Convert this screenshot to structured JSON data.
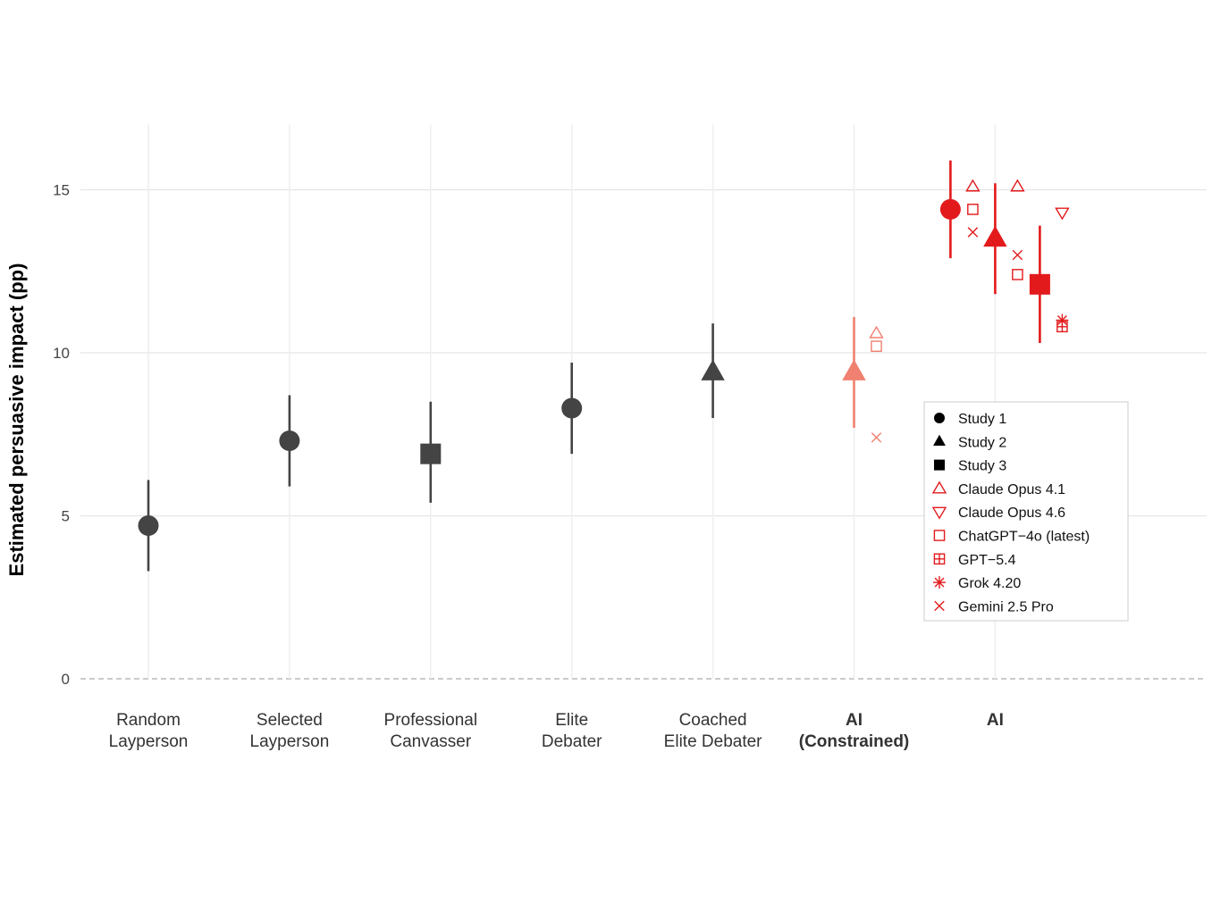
{
  "chart_data": {
    "type": "scatter",
    "ylabel": "Estimated persuasive impact (pp)",
    "xlabel": "",
    "ylim": [
      0,
      17
    ],
    "yticks": [
      0,
      5,
      10,
      15
    ],
    "grid": true,
    "zero_line": "dashed",
    "legend_placement": "right",
    "colors": {
      "human": "#444444",
      "ai_constrained": "#f08070",
      "ai": "#e31a1c",
      "grid": "#e5e5e5",
      "vline": "#efefef"
    },
    "categories": [
      {
        "label": "Random\nLayperson",
        "group": "human"
      },
      {
        "label": "Selected\nLayperson",
        "group": "human"
      },
      {
        "label": "Professional\nCanvasser",
        "group": "human"
      },
      {
        "label": "Elite\nDebater",
        "group": "human"
      },
      {
        "label": "Coached\nElite Debater",
        "group": "human"
      },
      {
        "label": "AI\n(Constrained)",
        "group": "ai_constrained"
      },
      {
        "label": "AI",
        "group": "ai"
      }
    ],
    "estimates": [
      {
        "category": 0,
        "study": "Study 1",
        "value": 4.7,
        "ci": [
          3.3,
          6.1
        ]
      },
      {
        "category": 1,
        "study": "Study 1",
        "value": 7.3,
        "ci": [
          5.9,
          8.7
        ]
      },
      {
        "category": 2,
        "study": "Study 3",
        "value": 6.9,
        "ci": [
          5.4,
          8.5
        ]
      },
      {
        "category": 3,
        "study": "Study 1",
        "value": 8.3,
        "ci": [
          6.9,
          9.7
        ]
      },
      {
        "category": 4,
        "study": "Study 2",
        "value": 9.4,
        "ci": [
          8.0,
          10.9
        ]
      },
      {
        "category": 5,
        "study": "Study 2",
        "value": 9.4,
        "ci": [
          7.7,
          11.1
        ]
      },
      {
        "category": 6,
        "study": "Study 1",
        "value": 14.4,
        "ci": [
          12.9,
          15.9
        ]
      },
      {
        "category": 6,
        "study": "Study 2",
        "value": 13.5,
        "ci": [
          11.8,
          15.2
        ]
      },
      {
        "category": 6,
        "study": "Study 3",
        "value": 12.1,
        "ci": [
          10.3,
          13.9
        ]
      }
    ],
    "model_points": [
      {
        "category": 5,
        "study": "Study 2",
        "model": "Claude Opus 4.1",
        "value": 10.6
      },
      {
        "category": 5,
        "study": "Study 2",
        "model": "ChatGPT−4o (latest)",
        "value": 10.2
      },
      {
        "category": 5,
        "study": "Study 2",
        "model": "Gemini 2.5 Pro",
        "value": 7.4
      },
      {
        "category": 6,
        "study": "Study 1",
        "model": "Claude Opus 4.1",
        "value": 15.1
      },
      {
        "category": 6,
        "study": "Study 1",
        "model": "ChatGPT−4o (latest)",
        "value": 14.4
      },
      {
        "category": 6,
        "study": "Study 1",
        "model": "Gemini 2.5 Pro",
        "value": 13.7
      },
      {
        "category": 6,
        "study": "Study 2",
        "model": "Claude Opus 4.1",
        "value": 15.1
      },
      {
        "category": 6,
        "study": "Study 2",
        "model": "Gemini 2.5 Pro",
        "value": 13.0
      },
      {
        "category": 6,
        "study": "Study 2",
        "model": "ChatGPT−4o (latest)",
        "value": 12.4
      },
      {
        "category": 6,
        "study": "Study 3",
        "model": "Claude Opus 4.6",
        "value": 14.3
      },
      {
        "category": 6,
        "study": "Study 3",
        "model": "Grok 4.20",
        "value": 11.0
      },
      {
        "category": 6,
        "study": "Study 3",
        "model": "GPT−5.4",
        "value": 10.8
      }
    ],
    "legend": [
      {
        "label": "Study 1",
        "shape": "circle-filled",
        "color": "#000000"
      },
      {
        "label": "Study 2",
        "shape": "triangle-up-filled",
        "color": "#000000"
      },
      {
        "label": "Study 3",
        "shape": "square-filled",
        "color": "#000000"
      },
      {
        "label": "Claude Opus 4.1",
        "shape": "triangle-up-open",
        "color": "#e31a1c"
      },
      {
        "label": "Claude Opus 4.6",
        "shape": "triangle-down-open",
        "color": "#e31a1c"
      },
      {
        "label": "ChatGPT−4o (latest)",
        "shape": "square-open",
        "color": "#e31a1c"
      },
      {
        "label": "GPT−5.4",
        "shape": "square-plus",
        "color": "#e31a1c"
      },
      {
        "label": "Grok 4.20",
        "shape": "asterisk",
        "color": "#e31a1c"
      },
      {
        "label": "Gemini 2.5 Pro",
        "shape": "cross",
        "color": "#e31a1c"
      }
    ]
  }
}
